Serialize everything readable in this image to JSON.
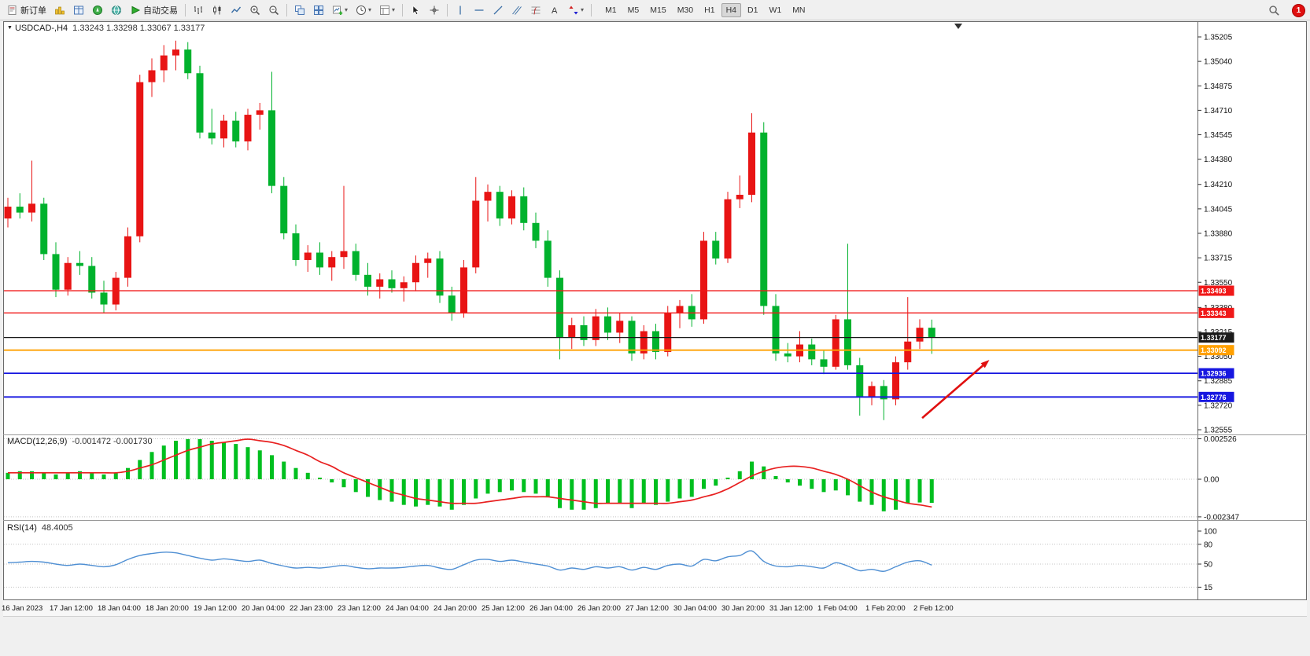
{
  "toolbar": {
    "new_order_label": "新订单",
    "auto_trading_label": "自动交易",
    "buttons": [
      {
        "name": "new-order",
        "label_key": "new_order_label",
        "icon": "new-order-icon"
      },
      {
        "name": "market-watch",
        "icon": "market-watch-icon"
      },
      {
        "name": "data-window",
        "icon": "data-window-icon"
      },
      {
        "name": "navigator",
        "icon": "navigator-icon"
      },
      {
        "name": "terminal",
        "icon": "terminal-icon"
      },
      {
        "name": "auto-trading",
        "label_key": "auto_trading_label",
        "icon": "autotrade-icon"
      },
      {
        "sep": true
      },
      {
        "name": "bar-chart-mode",
        "icon": "bars-icon"
      },
      {
        "name": "candle-chart-mode",
        "icon": "candles-icon"
      },
      {
        "name": "line-chart-mode",
        "icon": "line-icon"
      },
      {
        "name": "zoom-in",
        "icon": "zoom-in-icon"
      },
      {
        "name": "zoom-out",
        "icon": "zoom-out-icon"
      },
      {
        "sep": true
      },
      {
        "name": "tile-windows",
        "icon": "tile-icon"
      },
      {
        "name": "arrange-windows",
        "icon": "arrange-icon"
      },
      {
        "name": "new-chart",
        "icon": "new-chart-icon",
        "dropdown": true
      },
      {
        "name": "periods",
        "icon": "clock-icon",
        "dropdown": true
      },
      {
        "name": "templates",
        "icon": "template-icon",
        "dropdown": true
      },
      {
        "sep": true
      },
      {
        "name": "cursor",
        "icon": "cursor-icon"
      },
      {
        "name": "crosshair",
        "icon": "crosshair-icon"
      },
      {
        "sep": true
      },
      {
        "name": "vertical-line-tool",
        "icon": "vline-icon"
      },
      {
        "name": "horizontal-line-tool",
        "icon": "hline-icon"
      },
      {
        "name": "trendline-tool",
        "icon": "trendline-icon"
      },
      {
        "name": "channel-tool",
        "icon": "channel-icon"
      },
      {
        "name": "fibonacci-tool",
        "icon": "fibo-icon"
      },
      {
        "name": "text-tool",
        "icon": "text-icon"
      },
      {
        "name": "arrows-tool",
        "icon": "arrows-icon",
        "dropdown": true
      },
      {
        "sep": true
      }
    ],
    "timeframes": [
      "M1",
      "M5",
      "M15",
      "M30",
      "H1",
      "H4",
      "D1",
      "W1",
      "MN"
    ],
    "active_timeframe": "H4",
    "notification_count": "1"
  },
  "chart_data": {
    "type": "candlestick",
    "symbol": "USDCAD",
    "period": "H4",
    "title": "USDCAD-,H4",
    "ohlc_text": "1.33243 1.33298 1.33067 1.33177",
    "ohlc_current": {
      "open": 1.33243,
      "high": 1.33298,
      "low": 1.33067,
      "close": 1.33177
    },
    "price_axis_ticks": [
      "1.35205",
      "1.35040",
      "1.34875",
      "1.34710",
      "1.34545",
      "1.34380",
      "1.34210",
      "1.34045",
      "1.33880",
      "1.33715",
      "1.33550",
      "1.33380",
      "1.33215",
      "1.33050",
      "1.32885",
      "1.32720",
      "1.32555"
    ],
    "time_axis_labels": [
      "16 Jan 2023",
      "17 Jan 12:00",
      "18 Jan 04:00",
      "18 Jan 20:00",
      "19 Jan 12:00",
      "20 Jan 04:00",
      "22 Jan 23:00",
      "23 Jan 12:00",
      "24 Jan 04:00",
      "24 Jan 20:00",
      "25 Jan 12:00",
      "26 Jan 04:00",
      "26 Jan 20:00",
      "27 Jan 12:00",
      "30 Jan 04:00",
      "30 Jan 20:00",
      "31 Jan 12:00",
      "1 Feb 04:00",
      "1 Feb 20:00",
      "2 Feb 12:00"
    ],
    "candles": [
      [
        1.3398,
        1.3412,
        1.3392,
        1.3406
      ],
      [
        1.3406,
        1.3415,
        1.3398,
        1.3402
      ],
      [
        1.3402,
        1.3437,
        1.3396,
        1.3408
      ],
      [
        1.3408,
        1.3412,
        1.337,
        1.3374
      ],
      [
        1.3374,
        1.3382,
        1.3345,
        1.335
      ],
      [
        1.335,
        1.3372,
        1.3346,
        1.3368
      ],
      [
        1.3368,
        1.3376,
        1.336,
        1.3366
      ],
      [
        1.3366,
        1.3372,
        1.3344,
        1.3348
      ],
      [
        1.3348,
        1.3356,
        1.3334,
        1.334
      ],
      [
        1.334,
        1.3362,
        1.3336,
        1.3358
      ],
      [
        1.3358,
        1.3392,
        1.3352,
        1.3386
      ],
      [
        1.3386,
        1.3495,
        1.3382,
        1.349
      ],
      [
        1.349,
        1.3506,
        1.348,
        1.3498
      ],
      [
        1.3498,
        1.3515,
        1.349,
        1.3508
      ],
      [
        1.3508,
        1.3518,
        1.3498,
        1.3512
      ],
      [
        1.3512,
        1.3517,
        1.3492,
        1.3496
      ],
      [
        1.3496,
        1.3501,
        1.3452,
        1.3456
      ],
      [
        1.3456,
        1.3472,
        1.3448,
        1.3452
      ],
      [
        1.3452,
        1.3468,
        1.3446,
        1.3464
      ],
      [
        1.3464,
        1.347,
        1.3446,
        1.345
      ],
      [
        1.345,
        1.3472,
        1.3444,
        1.3468
      ],
      [
        1.3468,
        1.3476,
        1.3458,
        1.3471
      ],
      [
        1.3471,
        1.3497,
        1.3415,
        1.342
      ],
      [
        1.342,
        1.3426,
        1.3384,
        1.3388
      ],
      [
        1.3388,
        1.3394,
        1.3366,
        1.337
      ],
      [
        1.337,
        1.338,
        1.3362,
        1.3375
      ],
      [
        1.3375,
        1.3382,
        1.336,
        1.3365
      ],
      [
        1.3365,
        1.3376,
        1.3356,
        1.3372
      ],
      [
        1.3372,
        1.342,
        1.3364,
        1.3376
      ],
      [
        1.3376,
        1.3381,
        1.3356,
        1.336
      ],
      [
        1.336,
        1.3368,
        1.3346,
        1.3352
      ],
      [
        1.3352,
        1.3361,
        1.3344,
        1.3357
      ],
      [
        1.3357,
        1.3363,
        1.3348,
        1.3351
      ],
      [
        1.3351,
        1.3359,
        1.3342,
        1.3355
      ],
      [
        1.3355,
        1.3373,
        1.3349,
        1.3368
      ],
      [
        1.3368,
        1.3375,
        1.3358,
        1.3371
      ],
      [
        1.3371,
        1.3376,
        1.3341,
        1.3346
      ],
      [
        1.3346,
        1.3352,
        1.3329,
        1.3334
      ],
      [
        1.3334,
        1.337,
        1.3331,
        1.3365
      ],
      [
        1.3365,
        1.3426,
        1.3361,
        1.341
      ],
      [
        1.341,
        1.3421,
        1.3396,
        1.3416
      ],
      [
        1.3416,
        1.342,
        1.3393,
        1.3398
      ],
      [
        1.3398,
        1.3417,
        1.3394,
        1.3413
      ],
      [
        1.3413,
        1.3419,
        1.339,
        1.3395
      ],
      [
        1.3395,
        1.3402,
        1.3378,
        1.3383
      ],
      [
        1.3383,
        1.339,
        1.3352,
        1.3358
      ],
      [
        1.3358,
        1.3363,
        1.3303,
        1.3318
      ],
      [
        1.3318,
        1.3331,
        1.331,
        1.3326
      ],
      [
        1.3326,
        1.3332,
        1.3312,
        1.3316
      ],
      [
        1.3316,
        1.3337,
        1.3312,
        1.3332
      ],
      [
        1.3332,
        1.3338,
        1.3316,
        1.3321
      ],
      [
        1.3321,
        1.3334,
        1.3314,
        1.3329
      ],
      [
        1.3329,
        1.3332,
        1.3302,
        1.3307
      ],
      [
        1.3307,
        1.3326,
        1.3303,
        1.3322
      ],
      [
        1.3322,
        1.3327,
        1.3303,
        1.3308
      ],
      [
        1.3308,
        1.3339,
        1.3305,
        1.3334
      ],
      [
        1.3334,
        1.3343,
        1.3324,
        1.3339
      ],
      [
        1.3339,
        1.3347,
        1.3325,
        1.333
      ],
      [
        1.333,
        1.3389,
        1.3327,
        1.3383
      ],
      [
        1.3383,
        1.3389,
        1.3367,
        1.3371
      ],
      [
        1.3371,
        1.3416,
        1.3368,
        1.3411
      ],
      [
        1.3411,
        1.3427,
        1.3405,
        1.3414
      ],
      [
        1.3414,
        1.3469,
        1.3409,
        1.3456
      ],
      [
        1.3456,
        1.3463,
        1.3333,
        1.3339
      ],
      [
        1.3339,
        1.3347,
        1.3302,
        1.3307
      ],
      [
        1.3307,
        1.3314,
        1.3301,
        1.3305
      ],
      [
        1.3305,
        1.3322,
        1.3301,
        1.3313
      ],
      [
        1.3313,
        1.3317,
        1.3299,
        1.3303
      ],
      [
        1.3303,
        1.3309,
        1.3293,
        1.3298
      ],
      [
        1.3298,
        1.3333,
        1.3296,
        1.333
      ],
      [
        1.333,
        1.3381,
        1.3296,
        1.3299
      ],
      [
        1.3299,
        1.3304,
        1.3265,
        1.3278
      ],
      [
        1.3278,
        1.3288,
        1.3272,
        1.3285
      ],
      [
        1.3285,
        1.3289,
        1.3262,
        1.3276
      ],
      [
        1.3276,
        1.3305,
        1.3272,
        1.3301
      ],
      [
        1.3301,
        1.3345,
        1.3296,
        1.3315
      ],
      [
        1.3315,
        1.333,
        1.331,
        1.33243
      ],
      [
        1.33243,
        1.33298,
        1.33067,
        1.33177
      ]
    ],
    "hlines": [
      {
        "price": 1.33493,
        "label": "1.33493",
        "color": "#f01818",
        "width": 1.4
      },
      {
        "price": 1.33343,
        "label": "1.33343",
        "color": "#f01818",
        "width": 1.4
      },
      {
        "price": 1.33177,
        "label": "1.33177",
        "color": "#1a1a1a",
        "width": 1.2
      },
      {
        "price": 1.33092,
        "label": "1.33092",
        "color": "#ffa000",
        "width": 1.8
      },
      {
        "price": 1.32936,
        "label": "1.32936",
        "color": "#1616e0",
        "width": 1.8
      },
      {
        "price": 1.32776,
        "label": "1.32776",
        "color": "#1616e0",
        "width": 1.8
      }
    ],
    "arrow": {
      "from_bar": 76.2,
      "from_price": 1.32634,
      "to_bar": 81.8,
      "to_price": 1.33026,
      "color": "#e01010"
    },
    "macd": {
      "title": "MACD(12,26,9)",
      "values_text": "-0.001472 -0.001730",
      "axis_ticks": [
        "0.002526",
        "0.00",
        "-0.002347"
      ],
      "hist_color": "#00bf1f",
      "signal_color": "#e82020",
      "histogram": [
        0.0004,
        0.0005,
        0.0005,
        0.0004,
        0.0003,
        0.0004,
        0.0005,
        0.0004,
        0.0003,
        0.0004,
        0.0007,
        0.0012,
        0.0017,
        0.0021,
        0.0024,
        0.0025,
        0.0025,
        0.0024,
        0.0023,
        0.0022,
        0.002,
        0.0018,
        0.0015,
        0.0011,
        0.0007,
        0.0004,
        0.0001,
        -0.0002,
        -0.0005,
        -0.0008,
        -0.0011,
        -0.0013,
        -0.0014,
        -0.0016,
        -0.0017,
        -0.0016,
        -0.0017,
        -0.0019,
        -0.0016,
        -0.0012,
        -0.0009,
        -0.0008,
        -0.0007,
        -0.0008,
        -0.0009,
        -0.0011,
        -0.0018,
        -0.0019,
        -0.0019,
        -0.0018,
        -0.0015,
        -0.0015,
        -0.0018,
        -0.0015,
        -0.0016,
        -0.0014,
        -0.0012,
        -0.0011,
        -0.0006,
        -0.0004,
        0.0001,
        0.0005,
        0.0011,
        0.0008,
        0.0002,
        -0.0002,
        -0.0004,
        -0.0006,
        -0.0008,
        -0.0007,
        -0.001,
        -0.0014,
        -0.0016,
        -0.002,
        -0.0019,
        -0.0015,
        -0.00145,
        -0.001472
      ],
      "signal": [
        0.0004,
        0.0004,
        0.0004,
        0.0004,
        0.0004,
        0.0004,
        0.0004,
        0.0004,
        0.0004,
        0.0004,
        0.0005,
        0.0007,
        0.0009,
        0.0012,
        0.0015,
        0.0018,
        0.002,
        0.0022,
        0.0023,
        0.0024,
        0.0025,
        0.0024,
        0.0023,
        0.0021,
        0.0018,
        0.0015,
        0.0011,
        0.0008,
        0.0004,
        0.0001,
        -0.0002,
        -0.0005,
        -0.0008,
        -0.001,
        -0.0012,
        -0.0013,
        -0.0014,
        -0.0015,
        -0.0015,
        -0.0015,
        -0.0014,
        -0.0013,
        -0.0012,
        -0.0011,
        -0.0011,
        -0.0011,
        -0.0012,
        -0.0013,
        -0.0014,
        -0.0015,
        -0.0015,
        -0.0015,
        -0.0015,
        -0.0015,
        -0.0015,
        -0.0015,
        -0.0014,
        -0.0013,
        -0.0011,
        -0.0009,
        -0.0006,
        -0.0002,
        0.0002,
        0.0005,
        0.0007,
        0.0008,
        0.0008,
        0.0007,
        0.0005,
        0.0003,
        0.0,
        -0.0004,
        -0.0008,
        -0.0011,
        -0.0013,
        -0.0015,
        -0.0016,
        -0.00173
      ]
    },
    "rsi": {
      "title": "RSI(14)",
      "value_text": "48.4005",
      "axis_ticks": [
        "100",
        "80",
        "50",
        "15"
      ],
      "levels": [
        80,
        50,
        15
      ],
      "line_color": "#4f8fd3",
      "values": [
        52,
        53,
        54,
        53,
        50,
        48,
        50,
        48,
        46,
        49,
        57,
        63,
        66,
        68,
        67,
        63,
        59,
        56,
        58,
        56,
        54,
        56,
        51,
        47,
        44,
        45,
        44,
        46,
        48,
        45,
        43,
        44,
        44,
        45,
        47,
        48,
        44,
        42,
        49,
        56,
        57,
        54,
        56,
        53,
        50,
        47,
        41,
        44,
        42,
        46,
        44,
        46,
        41,
        45,
        42,
        48,
        50,
        47,
        57,
        55,
        61,
        63,
        70,
        54,
        47,
        46,
        48,
        46,
        44,
        52,
        47,
        40,
        42,
        39,
        46,
        53,
        55,
        48.4
      ],
      "ylim": [
        0,
        100
      ]
    },
    "colors": {
      "up": "#e81414",
      "down": "#00b22d",
      "background": "#ffffff",
      "axis_text": "#111111"
    }
  }
}
